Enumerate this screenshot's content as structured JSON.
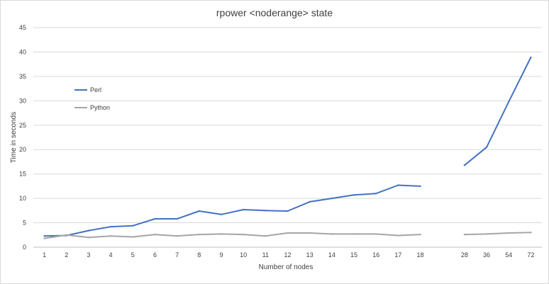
{
  "chart_data": {
    "type": "line",
    "title": "rpower <noderange> state",
    "xlabel": "Number of nodes",
    "ylabel": "Time in seconds",
    "ylim": [
      0,
      45
    ],
    "yticks": [
      0,
      5,
      10,
      15,
      20,
      25,
      30,
      35,
      40,
      45
    ],
    "grid": true,
    "legend_position": "left",
    "categories": [
      "1",
      "2",
      "3",
      "4",
      "5",
      "6",
      "7",
      "8",
      "9",
      "10",
      "11",
      "12",
      "13",
      "14",
      "15",
      "16",
      "17",
      "18",
      "",
      "28",
      "36",
      "54",
      "72"
    ],
    "series": [
      {
        "name": "Perl",
        "color": "#4472c4",
        "values": [
          2.3,
          2.4,
          3.4,
          4.2,
          4.4,
          5.8,
          5.8,
          7.4,
          6.7,
          7.7,
          7.5,
          7.4,
          9.3,
          10.0,
          10.7,
          11.0,
          12.7,
          12.5,
          null,
          16.8,
          20.5,
          29.8,
          38.9
        ]
      },
      {
        "name": "Python",
        "color": "#a5a5a5",
        "values": [
          1.8,
          2.5,
          2.0,
          2.3,
          2.1,
          2.6,
          2.3,
          2.6,
          2.7,
          2.6,
          2.3,
          2.9,
          2.9,
          2.7,
          2.7,
          2.7,
          2.4,
          2.6,
          null,
          2.6,
          2.7,
          2.9,
          3.0
        ]
      }
    ]
  }
}
